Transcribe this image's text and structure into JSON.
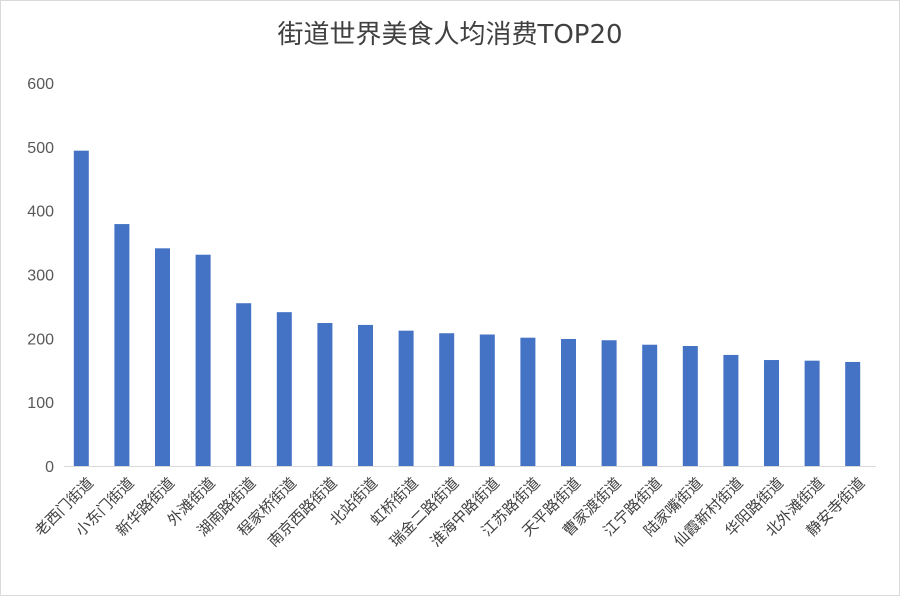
{
  "chart_data": {
    "type": "bar",
    "title": "街道世界美食人均消费TOP20",
    "xlabel": "",
    "ylabel": "",
    "ylim": [
      0,
      600
    ],
    "yticks": [
      0,
      100,
      200,
      300,
      400,
      500,
      600
    ],
    "grid": false,
    "legend": "none",
    "bar_color": "#4472C4",
    "categories": [
      "老西门街道",
      "小东门街道",
      "新华路街道",
      "外滩街道",
      "湖南路街道",
      "程家桥街道",
      "南京西路街道",
      "北站街道",
      "虹桥街道",
      "瑞金二路街道",
      "淮海中路街道",
      "江苏路街道",
      "天平路街道",
      "曹家渡街道",
      "江宁路街道",
      "陆家嘴街道",
      "仙霞新村街道",
      "华阳路街道",
      "北外滩街道",
      "静安寺街道"
    ],
    "values": [
      494,
      379,
      341,
      331,
      255,
      241,
      224,
      221,
      212,
      208,
      206,
      201,
      199,
      197,
      190,
      188,
      174,
      166,
      165,
      163
    ]
  }
}
